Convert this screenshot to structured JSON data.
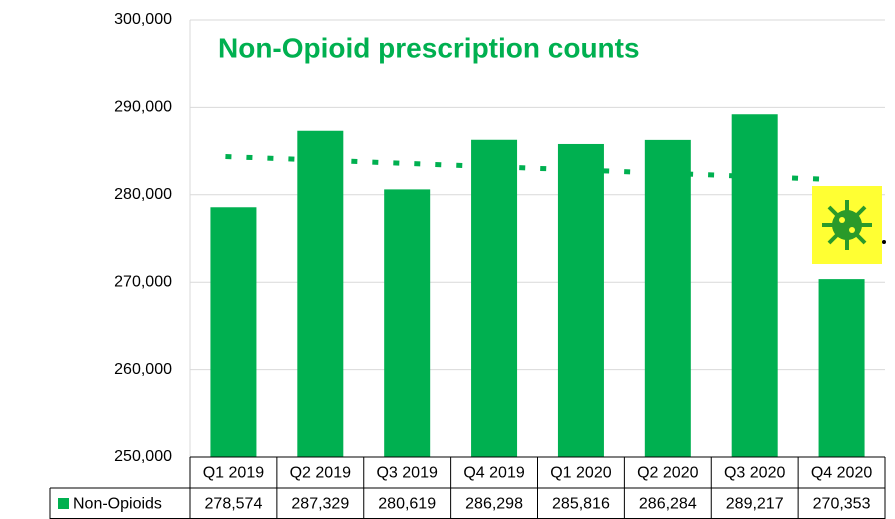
{
  "chart_data": {
    "type": "bar",
    "title": "Non-Opioid prescription counts",
    "categories": [
      "Q1 2019",
      "Q2 2019",
      "Q3 2019",
      "Q4 2019",
      "Q1 2020",
      "Q2 2020",
      "Q3 2020",
      "Q4 2020"
    ],
    "series": [
      {
        "name": "Non-Opioids",
        "color": "#00b050",
        "values": [
          278574,
          287329,
          280619,
          286298,
          285816,
          286284,
          289217,
          270353
        ],
        "value_labels": [
          "278,574",
          "287,329",
          "280,619",
          "286,298",
          "285,816",
          "286,284",
          "289,217",
          "270,353"
        ]
      }
    ],
    "ylim": [
      250000,
      300000
    ],
    "yticks": [
      {
        "value": 250000,
        "label": "250,000"
      },
      {
        "value": 260000,
        "label": "260,000"
      },
      {
        "value": 270000,
        "label": "270,000"
      },
      {
        "value": 280000,
        "label": "280,000"
      },
      {
        "value": 290000,
        "label": "290,000"
      },
      {
        "value": 300000,
        "label": "300,000"
      }
    ],
    "grid": true,
    "trendline": "linear",
    "data_table": true
  }
}
